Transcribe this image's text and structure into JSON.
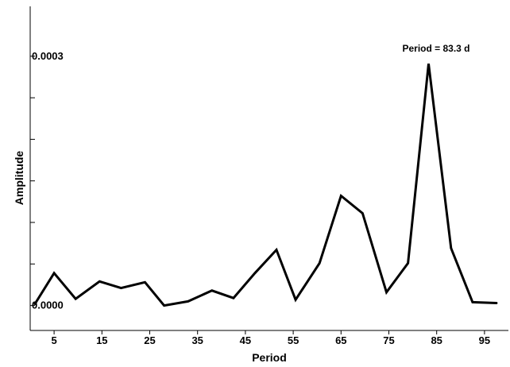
{
  "chart_data": {
    "type": "line",
    "title": "",
    "xlabel": "Period",
    "ylabel": "Amplitude",
    "xlim": [
      0,
      100
    ],
    "ylim": [
      -3e-05,
      0.00036
    ],
    "x_ticks": [
      5,
      15,
      25,
      35,
      45,
      55,
      65,
      75,
      85,
      95
    ],
    "x_tick_labels": [
      "5",
      "15",
      "25",
      "35",
      "45",
      "55",
      "65",
      "75",
      "85",
      "95"
    ],
    "y_ticks": [
      0.0,
      5e-05,
      0.0001,
      0.00015,
      0.0002,
      0.00025,
      0.0003
    ],
    "y_tick_labels": [
      "0.0000",
      "",
      "",
      "",
      "",
      "",
      "0.0003"
    ],
    "grid": false,
    "annotation": {
      "text": "Period = 83.3 d",
      "x": 83.3,
      "y": 0.000291
    },
    "series": [
      {
        "color": "#000000",
        "x": [
          1,
          5,
          9.5,
          14.5,
          19,
          24,
          28,
          33,
          38,
          42.5,
          47,
          51.5,
          55.5,
          60.5,
          65,
          69.5,
          74.5,
          79,
          83.3,
          88,
          92.5,
          97.5
        ],
        "y": [
          2e-06,
          3.9e-05,
          8e-06,
          2.9e-05,
          2.1e-05,
          2.8e-05,
          0.0,
          5e-06,
          1.8e-05,
          9e-06,
          3.9e-05,
          6.7e-05,
          7e-06,
          5.1e-05,
          0.000132,
          0.000111,
          1.6e-05,
          5.1e-05,
          0.000291,
          6.9e-05,
          4e-06,
          3e-06
        ]
      }
    ]
  }
}
